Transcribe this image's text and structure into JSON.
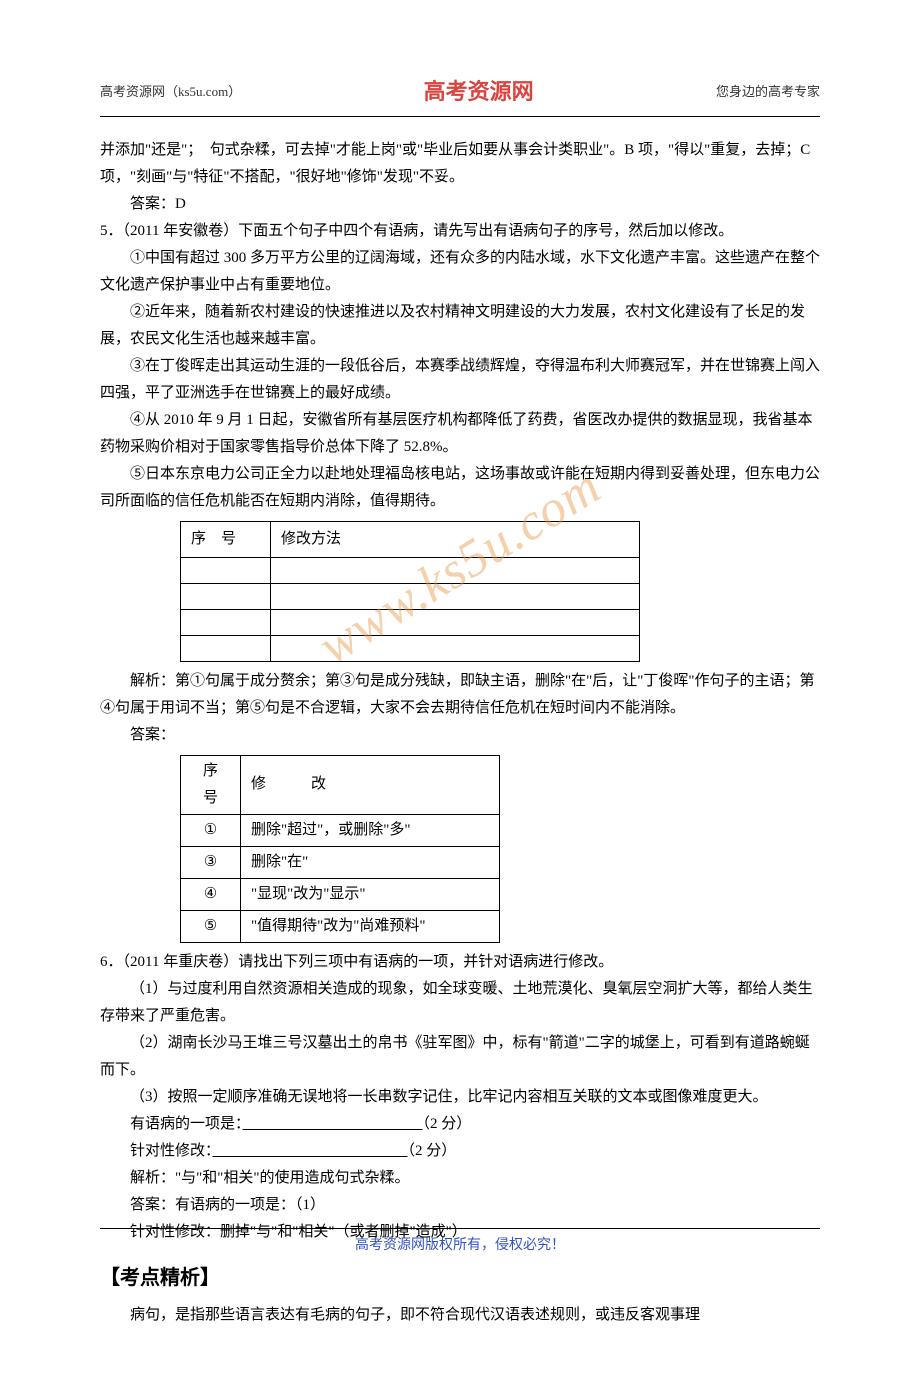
{
  "header": {
    "left": "高考资源网（ks5u.com）",
    "center": "高考资源网",
    "right": "您身边的高考专家"
  },
  "watermark": "www.ks5u.com",
  "top_paragraphs": [
    "并添加\"还是\"；　句式杂糅，可去掉\"才能上岗\"或\"毕业后如要从事会计类职业\"。B 项，\"得以\"重复，去掉；C 项，\"刻画\"与\"特征\"不搭配，\"很好地\"修饰\"发现\"不妥。",
    "答案：D"
  ],
  "q5": {
    "stem": "5．（2011 年安徽卷）下面五个句子中四个有语病，请先写出有语病句子的序号，然后加以修改。",
    "items": [
      "①中国有超过 300 多万平方公里的辽阔海域，还有众多的内陆水域，水下文化遗产丰富。这些遗产在整个文化遗产保护事业中占有重要地位。",
      "②近年来，随着新农村建设的快速推进以及农村精神文明建设的大力发展，农村文化建设有了长足的发展，农民文化生活也越来越丰富。",
      "③在丁俊晖走出其运动生涯的一段低谷后，本赛季战绩辉煌，夺得温布利大师赛冠军，并在世锦赛上闯入四强，平了亚洲选手在世锦赛上的最好成绩。",
      "④从 2010 年 9 月 1 日起，安徽省所有基层医疗机构都降低了药费，省医改办提供的数据显现，我省基本药物采购价相对于国家零售指导价总体下降了 52.8%。",
      "⑤日本东京电力公司正全力以赴地处理福岛核电站，这场事故或许能在短期内得到妥善处理，但东电力公司所面临的信任危机能否在短期内消除，值得期待。"
    ],
    "table1": {
      "headers": [
        "序　号",
        "修改方法"
      ]
    },
    "analysis": "解析：第①句属于成分赘余；第③句是成分残缺，即缺主语，删除\"在\"后，让\"丁俊晖\"作句子的主语；第④句属于用词不当；第⑤句是不合逻辑，大家不会去期待信任危机在短时间内不能消除。",
    "answer_label": "答案：",
    "table2": {
      "headers": [
        "序　号",
        "修　　　改"
      ],
      "rows": [
        [
          "①",
          "删除\"超过\"，或删除\"多\""
        ],
        [
          "③",
          "删除\"在\""
        ],
        [
          "④",
          "\"显现\"改为\"显示\""
        ],
        [
          "⑤",
          "\"值得期待\"改为\"尚难预料\""
        ]
      ]
    }
  },
  "q6": {
    "stem": "6．（2011 年重庆卷）请找出下列三项中有语病的一项，并针对语病进行修改。",
    "items": [
      "（1）与过度利用自然资源相关造成的现象，如全球变暖、土地荒漠化、臭氧层空洞扩大等，都给人类生存带来了严重危害。",
      "（2）湖南长沙马王堆三号汉墓出土的帛书《驻军图》中，标有\"箭道\"二字的城堡上，可看到有道路蜿蜒而下。",
      "（3）按照一定顺序准确无误地将一长串数字记住，比牢记内容相互关联的文本或图像难度更大。"
    ],
    "blanks": [
      {
        "label": "有语病的一项是：",
        "score": "（2 分）"
      },
      {
        "label": "针对性修改：",
        "score": "（2 分）"
      }
    ],
    "analysis": "解析：\"与\"和\"相关\"的使用造成句式杂糅。",
    "answer1": "答案：有语病的一项是：（1）",
    "answer2": "针对性修改：删掉\"与\"和\"相关\"（或者删掉\"造成\"）"
  },
  "section": "【考点精析】",
  "tail": "病句，是指那些语言表达有毛病的句子，即不符合现代汉语表述规则，或违反客观事理",
  "footer": "高考资源网版权所有，侵权必究！"
}
